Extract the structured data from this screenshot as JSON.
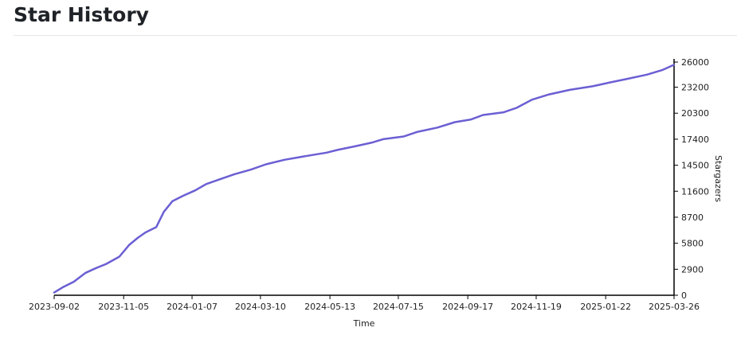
{
  "page": {
    "title": "Star History"
  },
  "chart_data": {
    "type": "line",
    "xlabel": "Time",
    "ylabel": "Stargazers",
    "x_ticks": [
      "2023-09-02",
      "2023-11-05",
      "2024-01-07",
      "2024-03-10",
      "2024-05-13",
      "2024-07-15",
      "2024-09-17",
      "2024-11-19",
      "2025-01-22",
      "2025-03-26"
    ],
    "y_ticks": [
      0,
      2900,
      5800,
      8700,
      11600,
      14500,
      17400,
      20300,
      23200,
      26000
    ],
    "xlim": [
      "2023-09-02",
      "2025-03-26"
    ],
    "ylim": [
      0,
      26000
    ],
    "line_color": "#6b5fd3",
    "series": [
      {
        "x": [
          "2023-09-02",
          "2023-09-10",
          "2023-09-20",
          "2023-10-01",
          "2023-10-10",
          "2023-10-20",
          "2023-11-01",
          "2023-11-10",
          "2023-11-18",
          "2023-11-25",
          "2023-12-05",
          "2023-12-12",
          "2023-12-20",
          "2023-12-30",
          "2024-01-10",
          "2024-01-20",
          "2024-02-01",
          "2024-02-15",
          "2024-03-01",
          "2024-03-15",
          "2024-04-01",
          "2024-04-20",
          "2024-05-10",
          "2024-05-20",
          "2024-06-05",
          "2024-06-20",
          "2024-07-01",
          "2024-07-20",
          "2024-08-01",
          "2024-08-20",
          "2024-09-05",
          "2024-09-20",
          "2024-10-01",
          "2024-10-20",
          "2024-11-01",
          "2024-11-15",
          "2024-12-01",
          "2024-12-20",
          "2025-01-10",
          "2025-01-25",
          "2025-02-10",
          "2025-03-01",
          "2025-03-15",
          "2025-03-26"
        ],
        "y": [
          300,
          900,
          1500,
          2500,
          3000,
          3500,
          4300,
          5600,
          6400,
          7000,
          7600,
          9300,
          10500,
          11100,
          11700,
          12400,
          12900,
          13500,
          14000,
          14600,
          15100,
          15500,
          15900,
          16200,
          16600,
          17000,
          17400,
          17700,
          18200,
          18700,
          19300,
          19600,
          20100,
          20400,
          20900,
          21800,
          22400,
          22900,
          23300,
          23700,
          24100,
          24600,
          25100,
          25700
        ]
      }
    ]
  }
}
